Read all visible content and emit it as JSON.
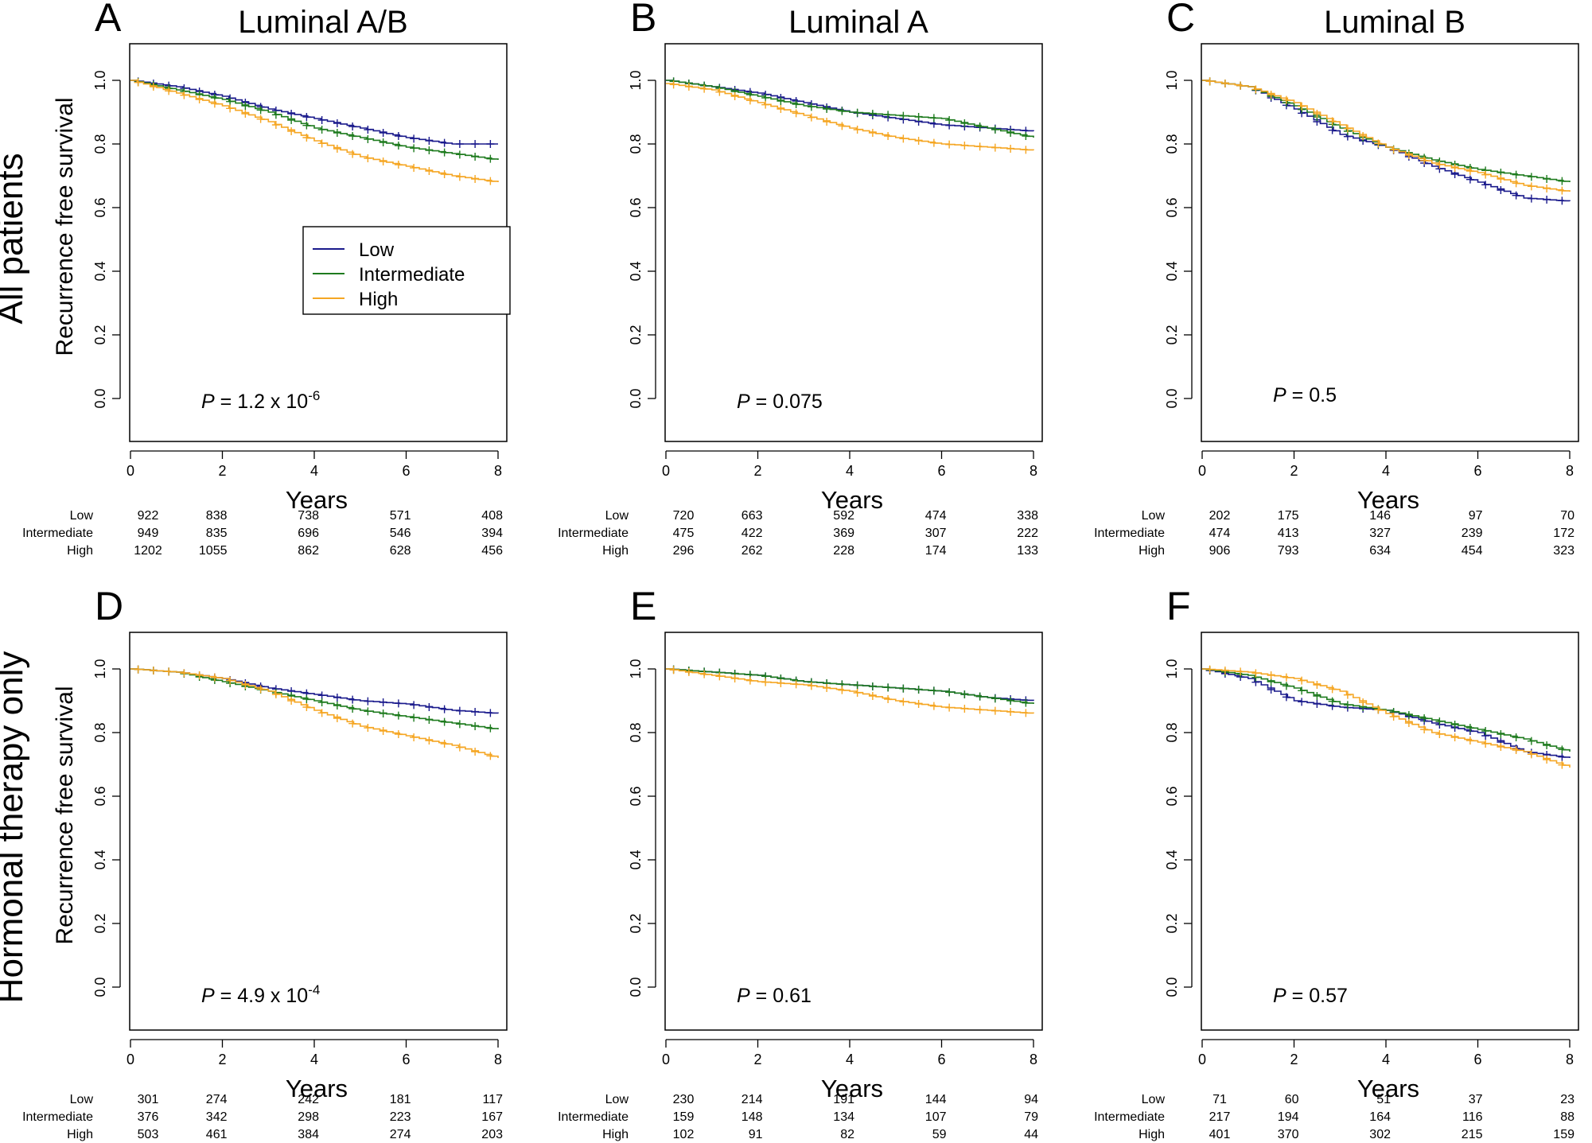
{
  "colors": {
    "Low": "#1a1a8c",
    "Intermediate": "#1e7b1e",
    "High": "#f5a623"
  },
  "row_labels": [
    "All patients",
    "Hormonal therapy only"
  ],
  "legend": {
    "items": [
      "Low",
      "Intermediate",
      "High"
    ]
  },
  "chart_data": [
    {
      "type": "line",
      "panel": "A",
      "title": "Luminal A/B",
      "row": 0,
      "col": 0,
      "xlabel": "Years",
      "ylabel": "Recurrence free survival",
      "xlim": [
        0,
        8
      ],
      "ylim": [
        0,
        1
      ],
      "xticks": [
        "0",
        "2",
        "4",
        "6",
        "8"
      ],
      "yticks": [
        "0.0",
        "0.2",
        "0.4",
        "0.6",
        "0.8",
        "1.0"
      ],
      "pvalue": {
        "prefix": "P",
        "text": " = 1.2 x 10",
        "exp": "-6"
      },
      "legend_position": "middle-right",
      "series": [
        {
          "name": "Low",
          "x": [
            0,
            1,
            2,
            3,
            4,
            5,
            6,
            7,
            8
          ],
          "y": [
            1.0,
            0.98,
            0.95,
            0.91,
            0.88,
            0.85,
            0.82,
            0.8,
            0.8
          ]
        },
        {
          "name": "Intermediate",
          "x": [
            0,
            1,
            2,
            3,
            4,
            5,
            6,
            7,
            8
          ],
          "y": [
            1.0,
            0.97,
            0.94,
            0.9,
            0.85,
            0.82,
            0.79,
            0.77,
            0.75
          ]
        },
        {
          "name": "High",
          "x": [
            0,
            1,
            2,
            3,
            4,
            5,
            6,
            7,
            8
          ],
          "y": [
            1.0,
            0.96,
            0.92,
            0.87,
            0.81,
            0.76,
            0.73,
            0.7,
            0.68
          ]
        }
      ],
      "at_risk": {
        "Low": [
          "922",
          "838",
          "738",
          "571",
          "408"
        ],
        "Intermediate": [
          "949",
          "835",
          "696",
          "546",
          "394"
        ],
        "High": [
          "1202",
          "1055",
          "862",
          "628",
          "456"
        ]
      }
    },
    {
      "type": "line",
      "panel": "B",
      "title": "Luminal A",
      "row": 0,
      "col": 1,
      "xlabel": "Years",
      "ylabel": "",
      "xlim": [
        0,
        8
      ],
      "ylim": [
        0,
        1
      ],
      "xticks": [
        "0",
        "2",
        "4",
        "6",
        "8"
      ],
      "yticks": [
        "0.0",
        "0.2",
        "0.4",
        "0.6",
        "0.8",
        "1.0"
      ],
      "pvalue": {
        "prefix": "P",
        "text": " = 0.075",
        "exp": ""
      },
      "series": [
        {
          "name": "Low",
          "x": [
            0,
            1,
            2,
            3,
            4,
            5,
            6,
            7,
            8
          ],
          "y": [
            1.0,
            0.98,
            0.96,
            0.93,
            0.9,
            0.88,
            0.86,
            0.85,
            0.84
          ]
        },
        {
          "name": "Intermediate",
          "x": [
            0,
            1,
            2,
            3,
            4,
            5,
            6,
            7,
            8
          ],
          "y": [
            1.0,
            0.98,
            0.95,
            0.92,
            0.9,
            0.89,
            0.88,
            0.85,
            0.82
          ]
        },
        {
          "name": "High",
          "x": [
            0,
            1,
            2,
            3,
            4,
            5,
            6,
            7,
            8
          ],
          "y": [
            0.99,
            0.97,
            0.93,
            0.89,
            0.85,
            0.82,
            0.8,
            0.79,
            0.78
          ]
        }
      ],
      "at_risk": {
        "Low": [
          "720",
          "663",
          "592",
          "474",
          "338"
        ],
        "Intermediate": [
          "475",
          "422",
          "369",
          "307",
          "222"
        ],
        "High": [
          "296",
          "262",
          "228",
          "174",
          "133"
        ]
      }
    },
    {
      "type": "line",
      "panel": "C",
      "title": "Luminal B",
      "row": 0,
      "col": 2,
      "xlabel": "Years",
      "ylabel": "",
      "xlim": [
        0,
        8
      ],
      "ylim": [
        0,
        1
      ],
      "xticks": [
        "0",
        "2",
        "4",
        "6",
        "8"
      ],
      "yticks": [
        "0.0",
        "0.2",
        "0.4",
        "0.6",
        "0.8",
        "1.0"
      ],
      "pvalue": {
        "prefix": "P",
        "text": " = 0.5",
        "exp": ""
      },
      "series": [
        {
          "name": "Low",
          "x": [
            0,
            1,
            2,
            3,
            4,
            5,
            6,
            7,
            8
          ],
          "y": [
            1.0,
            0.98,
            0.91,
            0.83,
            0.79,
            0.73,
            0.68,
            0.63,
            0.62
          ]
        },
        {
          "name": "Intermediate",
          "x": [
            0,
            1,
            2,
            3,
            4,
            5,
            6,
            7,
            8
          ],
          "y": [
            1.0,
            0.98,
            0.92,
            0.85,
            0.79,
            0.75,
            0.72,
            0.7,
            0.68
          ]
        },
        {
          "name": "High",
          "x": [
            0,
            1,
            2,
            3,
            4,
            5,
            6,
            7,
            8
          ],
          "y": [
            1.0,
            0.98,
            0.93,
            0.86,
            0.79,
            0.74,
            0.71,
            0.67,
            0.65
          ]
        }
      ],
      "at_risk": {
        "Low": [
          "202",
          "175",
          "146",
          "97",
          "70"
        ],
        "Intermediate": [
          "474",
          "413",
          "327",
          "239",
          "172"
        ],
        "High": [
          "906",
          "793",
          "634",
          "454",
          "323"
        ]
      }
    },
    {
      "type": "line",
      "panel": "D",
      "title": "",
      "row": 1,
      "col": 0,
      "xlabel": "Years",
      "ylabel": "Recurrence free survival",
      "xlim": [
        0,
        8
      ],
      "ylim": [
        0,
        1
      ],
      "xticks": [
        "0",
        "2",
        "4",
        "6",
        "8"
      ],
      "yticks": [
        "0.0",
        "0.2",
        "0.4",
        "0.6",
        "0.8",
        "1.0"
      ],
      "pvalue": {
        "prefix": "P",
        "text": " = 4.9 x 10",
        "exp": "-4"
      },
      "series": [
        {
          "name": "Low",
          "x": [
            0,
            1,
            2,
            3,
            4,
            5,
            6,
            7,
            8
          ],
          "y": [
            1.0,
            0.99,
            0.97,
            0.94,
            0.92,
            0.9,
            0.89,
            0.87,
            0.86
          ]
        },
        {
          "name": "Intermediate",
          "x": [
            0,
            1,
            2,
            3,
            4,
            5,
            6,
            7,
            8
          ],
          "y": [
            1.0,
            0.99,
            0.96,
            0.93,
            0.9,
            0.87,
            0.85,
            0.83,
            0.81
          ]
        },
        {
          "name": "High",
          "x": [
            0,
            1,
            2,
            3,
            4,
            5,
            6,
            7,
            8
          ],
          "y": [
            1.0,
            0.99,
            0.97,
            0.93,
            0.87,
            0.82,
            0.79,
            0.76,
            0.72
          ]
        }
      ],
      "at_risk": {
        "Low": [
          "301",
          "274",
          "242",
          "181",
          "117"
        ],
        "Intermediate": [
          "376",
          "342",
          "298",
          "223",
          "167"
        ],
        "High": [
          "503",
          "461",
          "384",
          "274",
          "203"
        ]
      }
    },
    {
      "type": "line",
      "panel": "E",
      "title": "",
      "row": 1,
      "col": 1,
      "xlabel": "Years",
      "ylabel": "",
      "xlim": [
        0,
        8
      ],
      "ylim": [
        0,
        1
      ],
      "xticks": [
        "0",
        "2",
        "4",
        "6",
        "8"
      ],
      "yticks": [
        "0.0",
        "0.2",
        "0.4",
        "0.6",
        "0.8",
        "1.0"
      ],
      "pvalue": {
        "prefix": "P",
        "text": " = 0.61",
        "exp": ""
      },
      "series": [
        {
          "name": "Low",
          "x": [
            0,
            1,
            2,
            3,
            4,
            5,
            6,
            7,
            8
          ],
          "y": [
            1.0,
            0.99,
            0.98,
            0.96,
            0.95,
            0.94,
            0.93,
            0.91,
            0.9
          ]
        },
        {
          "name": "Intermediate",
          "x": [
            0,
            1,
            2,
            3,
            4,
            5,
            6,
            7,
            8
          ],
          "y": [
            1.0,
            0.99,
            0.98,
            0.96,
            0.95,
            0.94,
            0.93,
            0.91,
            0.89
          ]
        },
        {
          "name": "High",
          "x": [
            0,
            1,
            2,
            3,
            4,
            5,
            6,
            7,
            8
          ],
          "y": [
            1.0,
            0.98,
            0.96,
            0.95,
            0.93,
            0.9,
            0.88,
            0.87,
            0.86
          ]
        }
      ],
      "at_risk": {
        "Low": [
          "230",
          "214",
          "191",
          "144",
          "94"
        ],
        "Intermediate": [
          "159",
          "148",
          "134",
          "107",
          "79"
        ],
        "High": [
          "102",
          "91",
          "82",
          "59",
          "44"
        ]
      }
    },
    {
      "type": "line",
      "panel": "F",
      "title": "",
      "row": 1,
      "col": 2,
      "xlabel": "Years",
      "ylabel": "",
      "xlim": [
        0,
        8
      ],
      "ylim": [
        0,
        1
      ],
      "xticks": [
        "0",
        "2",
        "4",
        "6",
        "8"
      ],
      "yticks": [
        "0.0",
        "0.2",
        "0.4",
        "0.6",
        "0.8",
        "1.0"
      ],
      "pvalue": {
        "prefix": "P",
        "text": " = 0.57",
        "exp": ""
      },
      "series": [
        {
          "name": "Low",
          "x": [
            0,
            1,
            2,
            3,
            4,
            5,
            6,
            7,
            8
          ],
          "y": [
            1.0,
            0.97,
            0.9,
            0.88,
            0.87,
            0.83,
            0.8,
            0.74,
            0.72
          ]
        },
        {
          "name": "Intermediate",
          "x": [
            0,
            1,
            2,
            3,
            4,
            5,
            6,
            7,
            8
          ],
          "y": [
            1.0,
            0.98,
            0.94,
            0.89,
            0.87,
            0.84,
            0.81,
            0.78,
            0.74
          ]
        },
        {
          "name": "High",
          "x": [
            0,
            1,
            2,
            3,
            4,
            5,
            6,
            7,
            8
          ],
          "y": [
            1.0,
            0.99,
            0.97,
            0.93,
            0.86,
            0.8,
            0.77,
            0.74,
            0.69
          ]
        }
      ],
      "at_risk": {
        "Low": [
          "71",
          "60",
          "51",
          "37",
          "23"
        ],
        "Intermediate": [
          "217",
          "194",
          "164",
          "116",
          "88"
        ],
        "High": [
          "401",
          "370",
          "302",
          "215",
          "159"
        ]
      }
    }
  ]
}
